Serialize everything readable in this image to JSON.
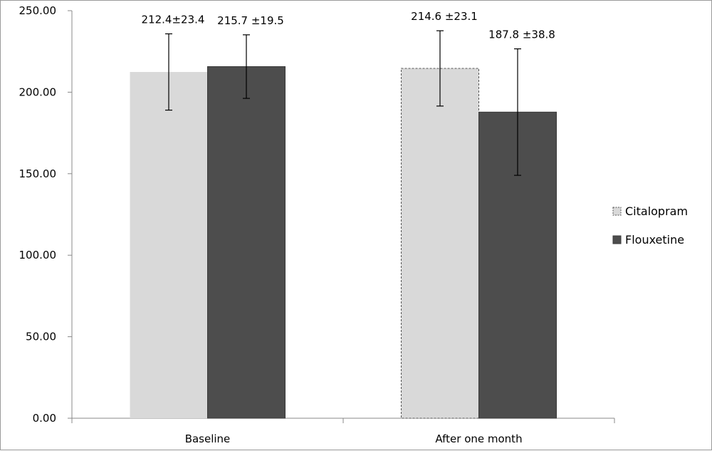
{
  "chart_data": {
    "type": "bar",
    "categories": [
      "Baseline",
      "After one month"
    ],
    "series": [
      {
        "name": "Citalopram",
        "values": [
          212.4,
          214.6
        ],
        "errors": [
          23.4,
          23.1
        ],
        "labels": [
          "212.4±23.4",
          "214.6 ±23.1"
        ],
        "color": "#d9d9d9"
      },
      {
        "name": "Flouxetine",
        "values": [
          215.7,
          187.8
        ],
        "errors": [
          19.5,
          38.8
        ],
        "labels": [
          "215.7 ±19.5",
          "187.8 ±38.8"
        ],
        "color": "#4d4d4d"
      }
    ],
    "y_ticks": [
      "0.00",
      "50.00",
      "100.00",
      "150.00",
      "200.00",
      "250.00"
    ],
    "ylim": [
      0,
      250
    ],
    "title": "",
    "xlabel": "",
    "ylabel": "",
    "grid": false,
    "legend_position": "right"
  }
}
